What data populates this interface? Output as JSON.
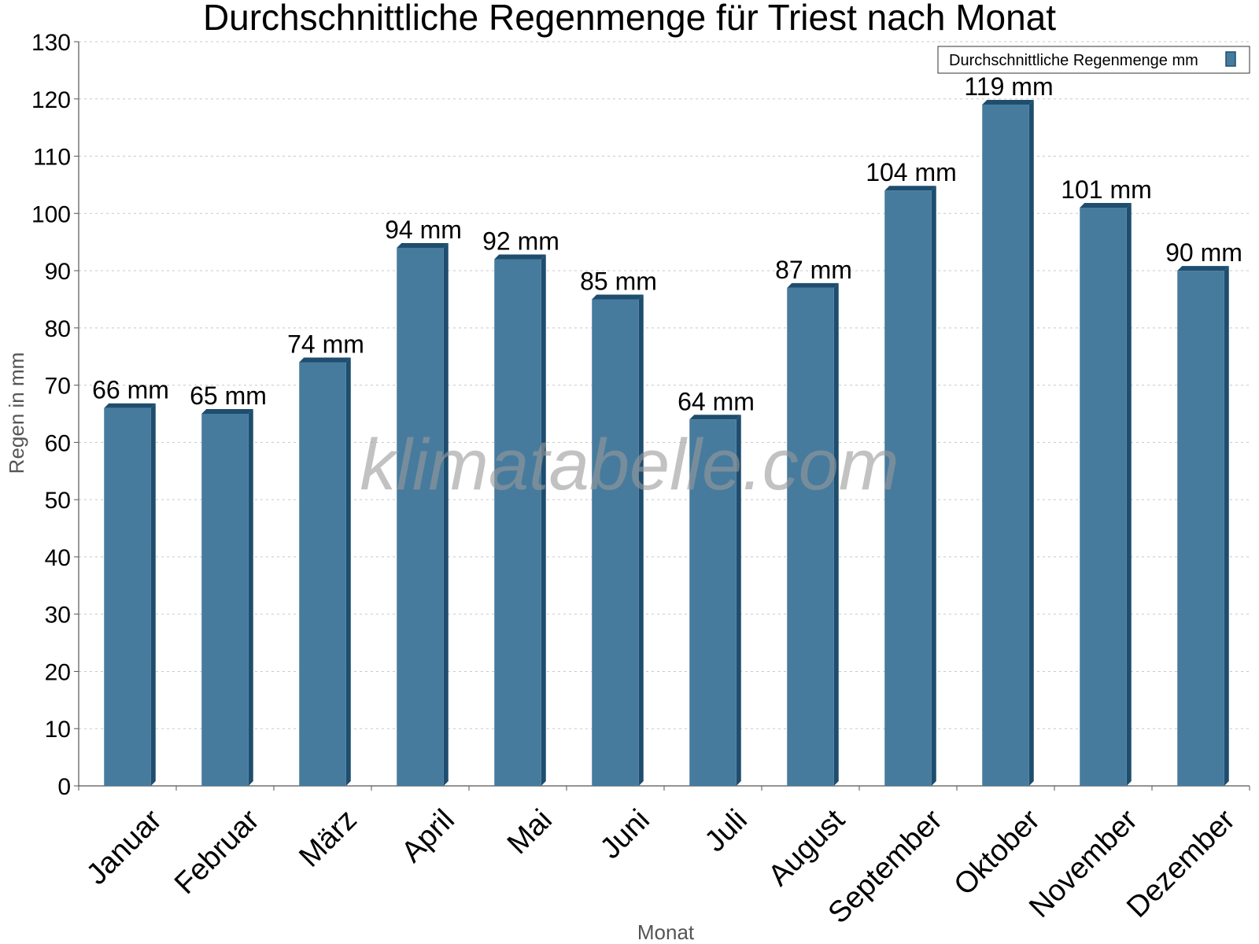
{
  "chart_data": {
    "type": "bar",
    "title": "Durchschnittliche Regenmenge für Triest nach Monat",
    "xlabel": "Monat",
    "ylabel": "Regen in mm",
    "ylim": [
      0,
      130
    ],
    "ytick_step": 10,
    "grid": true,
    "legend_position": "top-right",
    "categories": [
      "Januar",
      "Februar",
      "März",
      "April",
      "Mai",
      "Juni",
      "Juli",
      "August",
      "September",
      "Oktober",
      "November",
      "Dezember"
    ],
    "series": [
      {
        "name": "Durchschnittliche Regenmenge mm",
        "values": [
          66,
          65,
          74,
          94,
          92,
          85,
          64,
          87,
          104,
          119,
          101,
          90
        ],
        "labels": [
          "66 mm",
          "65 mm",
          "74 mm",
          "94 mm",
          "92 mm",
          "85 mm",
          "64 mm",
          "87 mm",
          "104 mm",
          "119 mm",
          "101 mm",
          "90 mm"
        ]
      }
    ],
    "watermark": "klimatabelle.com"
  },
  "colors": {
    "bar_front": "#467b9d",
    "bar_side": "#1e4d6e",
    "bar_top": "#1e4d6e",
    "axis": "#555555"
  }
}
